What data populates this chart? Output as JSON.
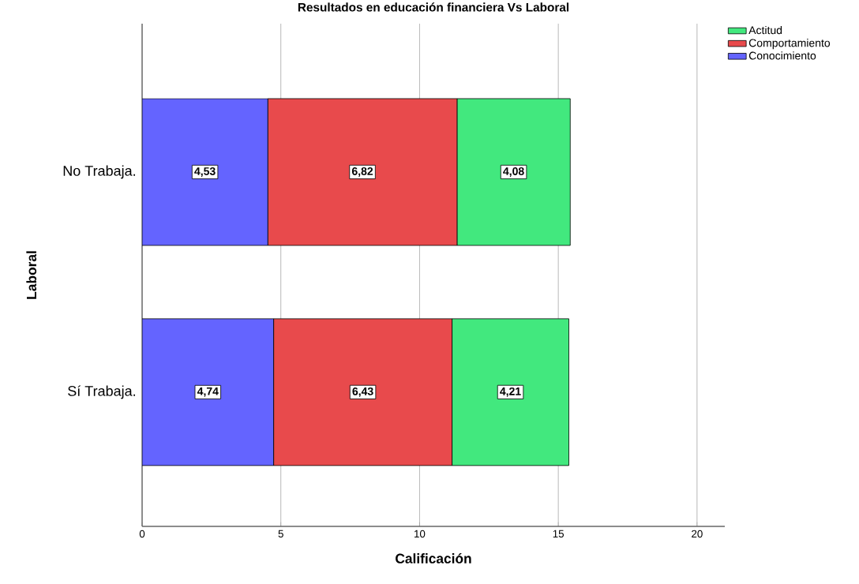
{
  "chart_data": {
    "type": "bar",
    "orientation": "horizontal",
    "stacked": true,
    "title": "Resultados en educación financiera Vs Laboral",
    "xlabel": "Calificación",
    "ylabel": "Laboral",
    "categories": [
      "No Trabaja.",
      "Sí Trabaja."
    ],
    "series": [
      {
        "name": "Conocimiento",
        "color": "#6464ff",
        "values": [
          4.53,
          4.74
        ],
        "value_labels": [
          "4,53",
          "4,74"
        ]
      },
      {
        "name": "Comportamiento",
        "color": "#e84a4c",
        "values": [
          6.82,
          6.43
        ],
        "value_labels": [
          "6,82",
          "6,43"
        ]
      },
      {
        "name": "Actitud",
        "color": "#42e87e",
        "values": [
          4.08,
          4.21
        ],
        "value_labels": [
          "4,08",
          "4,21"
        ]
      }
    ],
    "xlim": [
      0,
      21
    ],
    "xticks": [
      0,
      5,
      10,
      15,
      20
    ],
    "grid": "x",
    "legend": "top right"
  }
}
